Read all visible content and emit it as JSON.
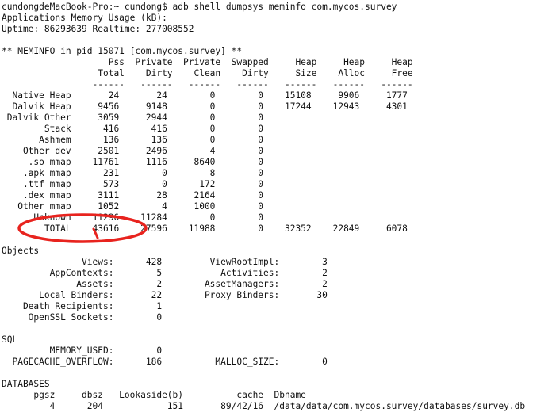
{
  "terminal": {
    "accent_color": "#e8231e",
    "lines": [
      "cundongdeMacBook-Pro:~ cundong$ adb shell dumpsys meminfo com.mycos.survey",
      "Applications Memory Usage (kB):",
      "Uptime: 86293639 Realtime: 277008552",
      "",
      "** MEMINFO in pid 15071 [com.mycos.survey] **",
      "                    Pss  Private  Private  Swapped     Heap     Heap     Heap",
      "                  Total    Dirty    Clean    Dirty     Size    Alloc     Free",
      "                 ------   ------   ------   ------   ------   ------   ------",
      "  Native Heap       24       24        0        0    15108     9906     1777",
      "  Dalvik Heap     9456     9148        0        0    17244    12943     4301",
      " Dalvik Other     3059     2944        0        0",
      "        Stack      416      416        0        0",
      "       Ashmem      136      136        0        0",
      "    Other dev     2501     2496        4        0",
      "     .so mmap    11761     1116     8640        0",
      "    .apk mmap      231        0        8        0",
      "    .ttf mmap      573        0      172        0",
      "    .dex mmap     3111       28     2164        0",
      "   Other mmap     1052        4     1000        0",
      "      Unknown    11296    11284        0        0",
      "        TOTAL    43616    27596    11988        0    32352    22849     6078",
      "",
      "Objects",
      "               Views:      428         ViewRootImpl:        3",
      "         AppContexts:        5           Activities:        2",
      "              Assets:        2        AssetManagers:        2",
      "       Local Binders:       22        Proxy Binders:       30",
      "    Death Recipients:        1",
      "     OpenSSL Sockets:        0",
      "",
      "SQL",
      "         MEMORY_USED:        0",
      "  PAGECACHE_OVERFLOW:      186          MALLOC_SIZE:        0",
      "",
      "DATABASES",
      "      pgsz     dbsz   Lookaside(b)          cache  Dbname",
      "         4      204            151       89/42/16  /data/data/com.mycos.survey/databases/survey.db"
    ]
  }
}
